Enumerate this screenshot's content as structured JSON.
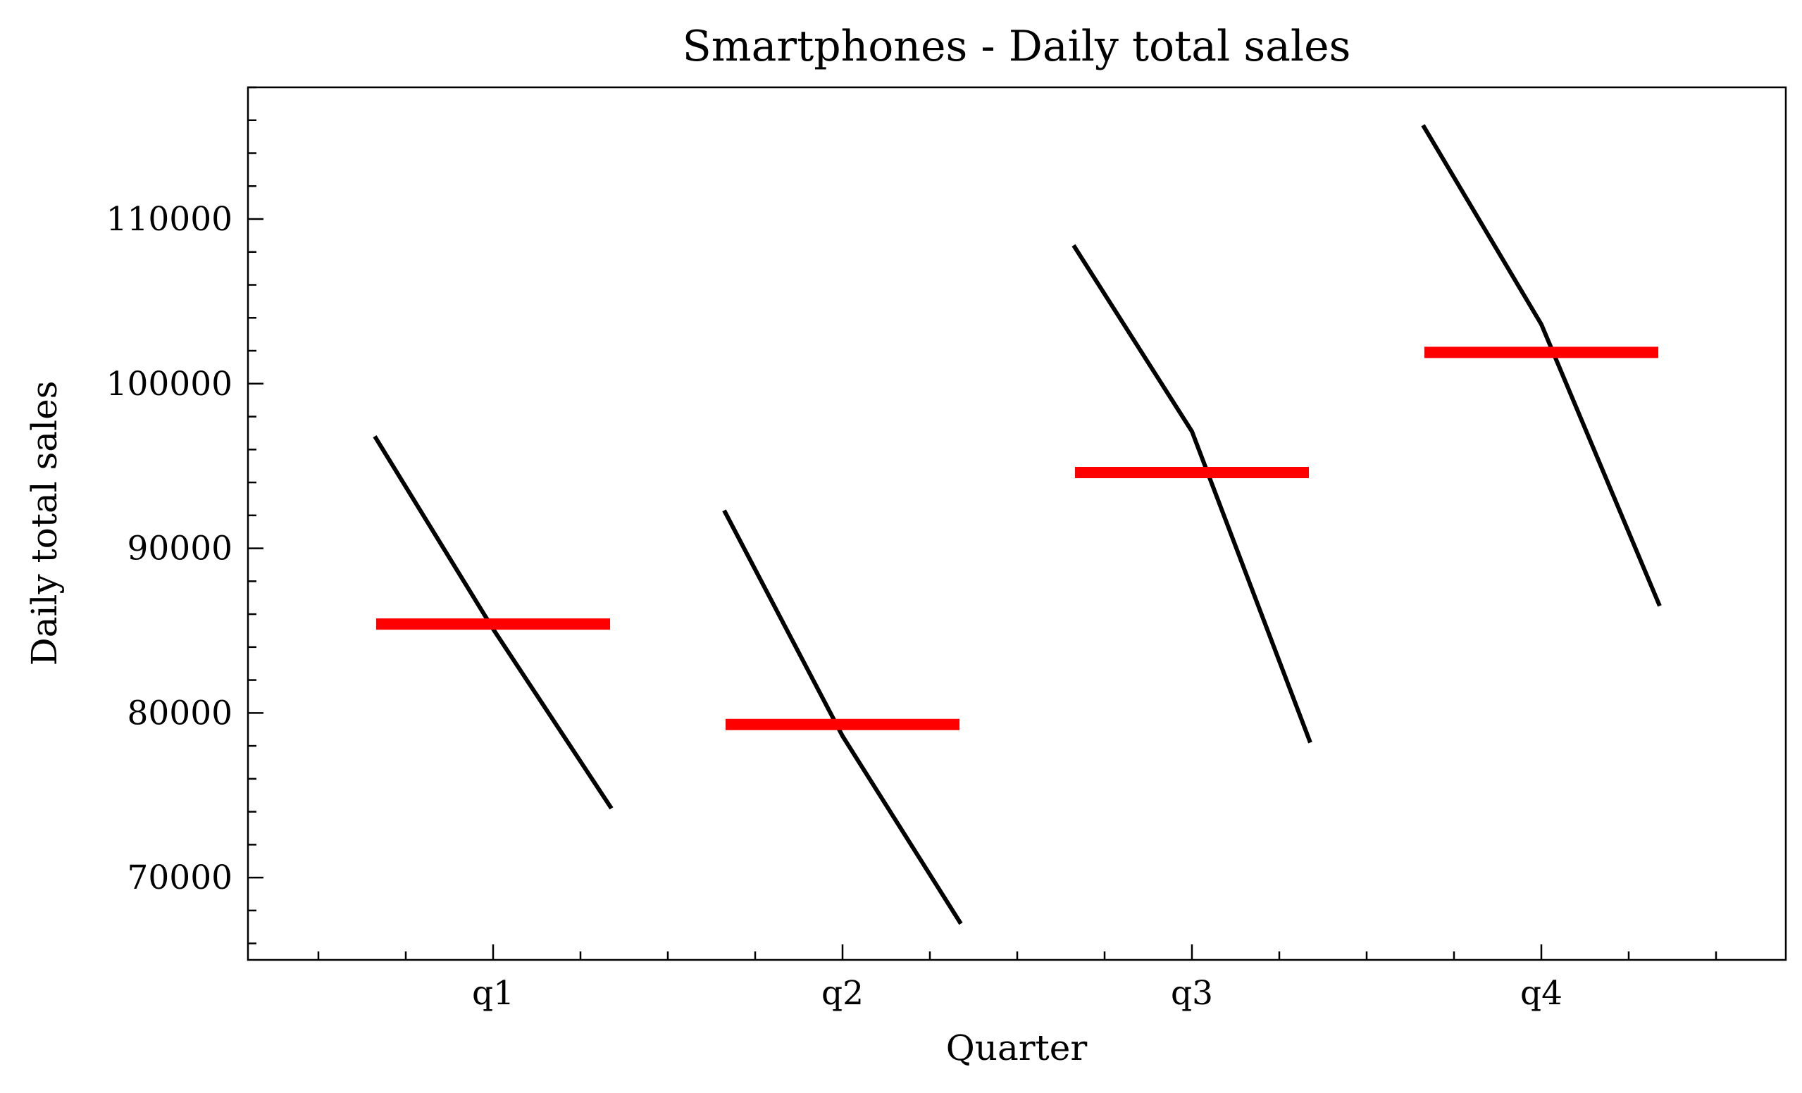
{
  "chart_data": {
    "type": "line",
    "title": "Smartphones - Daily total sales",
    "xlabel": "Quarter",
    "ylabel": "Daily total sales",
    "categories": [
      "q1",
      "q2",
      "q3",
      "q4"
    ],
    "series": [
      {
        "kind": "within-quarter values",
        "values": [
          [
            96800,
            85100,
            74200
          ],
          [
            92300,
            78600,
            67200
          ],
          [
            108400,
            97100,
            78200
          ],
          [
            115700,
            103600,
            86500
          ]
        ]
      },
      {
        "kind": "quarter mean",
        "values": [
          85400,
          79300,
          94600,
          101900
        ]
      }
    ],
    "yticks": [
      70000,
      80000,
      90000,
      100000,
      110000
    ],
    "ylim": [
      65000,
      118000
    ],
    "grid": false,
    "legend": "none",
    "colors": {
      "mean": "#ff0000",
      "line": "#000000"
    }
  }
}
